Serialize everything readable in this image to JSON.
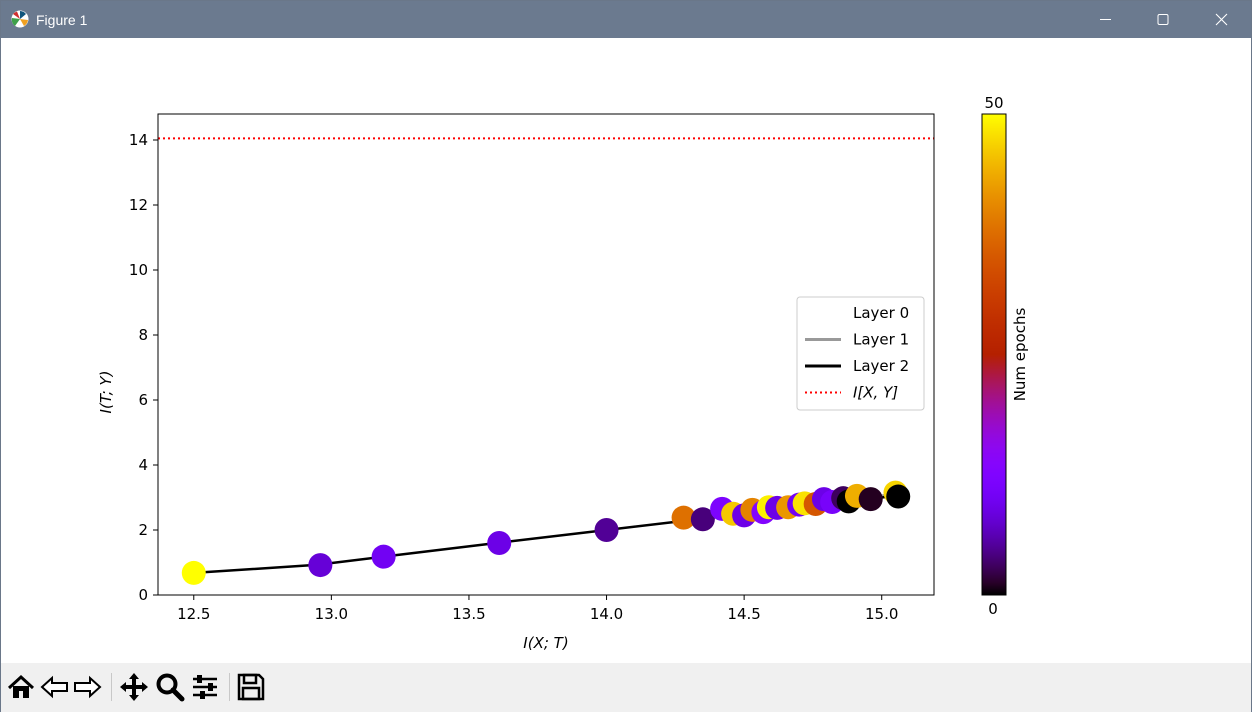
{
  "window": {
    "title": "Figure 1"
  },
  "toolbar": {
    "tools": [
      "home-icon",
      "back-icon",
      "forward-icon",
      "pan-icon",
      "zoom-icon",
      "configure-subplots-icon",
      "save-icon"
    ]
  },
  "chart_data": {
    "type": "scatter",
    "title": "",
    "xlabel": "I(X; T)",
    "ylabel": "I(T; Y)",
    "xlim": [
      12.37,
      15.19
    ],
    "ylim": [
      0,
      14.8
    ],
    "xticks": [
      12.5,
      13.0,
      13.5,
      14.0,
      14.5,
      15.0
    ],
    "xtick_labels": [
      "12.5",
      "13.0",
      "13.5",
      "14.0",
      "14.5",
      "15.0"
    ],
    "yticks": [
      0,
      2,
      4,
      6,
      8,
      10,
      12,
      14
    ],
    "ytick_labels": [
      "0",
      "2",
      "4",
      "6",
      "8",
      "10",
      "12",
      "14"
    ],
    "grid": false,
    "reference_line": {
      "label": "I[X, Y]",
      "y": 14.05,
      "color": "#ff0000",
      "style": "dotted"
    },
    "legend": {
      "placement": "center-right",
      "entries": [
        {
          "label": "Layer 0",
          "color": "#ffffff"
        },
        {
          "label": "Layer 1",
          "color": "#999999"
        },
        {
          "label": "Layer 2",
          "color": "#000000"
        }
      ]
    },
    "series": [
      {
        "name": "Layer 1",
        "color": "#999999",
        "x": [
          14.35,
          14.5,
          14.7,
          14.9,
          15.05
        ],
        "y": [
          2.45,
          2.6,
          2.8,
          2.95,
          3.1
        ]
      },
      {
        "name": "Layer 2",
        "color": "#000000",
        "x": [
          12.5,
          12.95,
          13.19,
          13.6,
          14.0,
          14.35,
          14.6,
          14.8,
          15.05
        ],
        "y": [
          0.68,
          0.93,
          1.18,
          1.6,
          2.0,
          2.35,
          2.6,
          2.8,
          3.05
        ]
      }
    ],
    "points": [
      {
        "x": 12.5,
        "y": 0.68,
        "epoch": 50
      },
      {
        "x": 12.96,
        "y": 0.92,
        "epoch": 8
      },
      {
        "x": 13.19,
        "y": 1.18,
        "epoch": 10
      },
      {
        "x": 13.61,
        "y": 1.6,
        "epoch": 9
      },
      {
        "x": 14.0,
        "y": 2.0,
        "epoch": 5
      },
      {
        "x": 14.28,
        "y": 2.38,
        "epoch": 38
      },
      {
        "x": 14.35,
        "y": 2.33,
        "epoch": 4
      },
      {
        "x": 14.42,
        "y": 2.65,
        "epoch": 12
      },
      {
        "x": 14.46,
        "y": 2.5,
        "epoch": 46
      },
      {
        "x": 14.5,
        "y": 2.45,
        "epoch": 9
      },
      {
        "x": 14.53,
        "y": 2.62,
        "epoch": 40
      },
      {
        "x": 14.57,
        "y": 2.55,
        "epoch": 13
      },
      {
        "x": 14.59,
        "y": 2.7,
        "epoch": 49
      },
      {
        "x": 14.62,
        "y": 2.68,
        "epoch": 9
      },
      {
        "x": 14.66,
        "y": 2.7,
        "epoch": 42
      },
      {
        "x": 14.7,
        "y": 2.78,
        "epoch": 10
      },
      {
        "x": 14.72,
        "y": 2.82,
        "epoch": 48
      },
      {
        "x": 14.76,
        "y": 2.8,
        "epoch": 35
      },
      {
        "x": 14.79,
        "y": 2.95,
        "epoch": 9
      },
      {
        "x": 14.82,
        "y": 2.86,
        "epoch": 11
      },
      {
        "x": 14.86,
        "y": 2.98,
        "epoch": 3
      },
      {
        "x": 14.88,
        "y": 2.88,
        "epoch": 0
      },
      {
        "x": 14.91,
        "y": 3.05,
        "epoch": 44
      },
      {
        "x": 14.96,
        "y": 2.95,
        "epoch": 1
      },
      {
        "x": 15.05,
        "y": 3.15,
        "epoch": 47
      },
      {
        "x": 15.06,
        "y": 3.03,
        "epoch": 0
      }
    ],
    "colorbar": {
      "label": "Num epochs",
      "range": [
        0,
        50
      ],
      "tick_labels": [
        "0",
        "50"
      ],
      "colormap": "gnuplot"
    }
  }
}
